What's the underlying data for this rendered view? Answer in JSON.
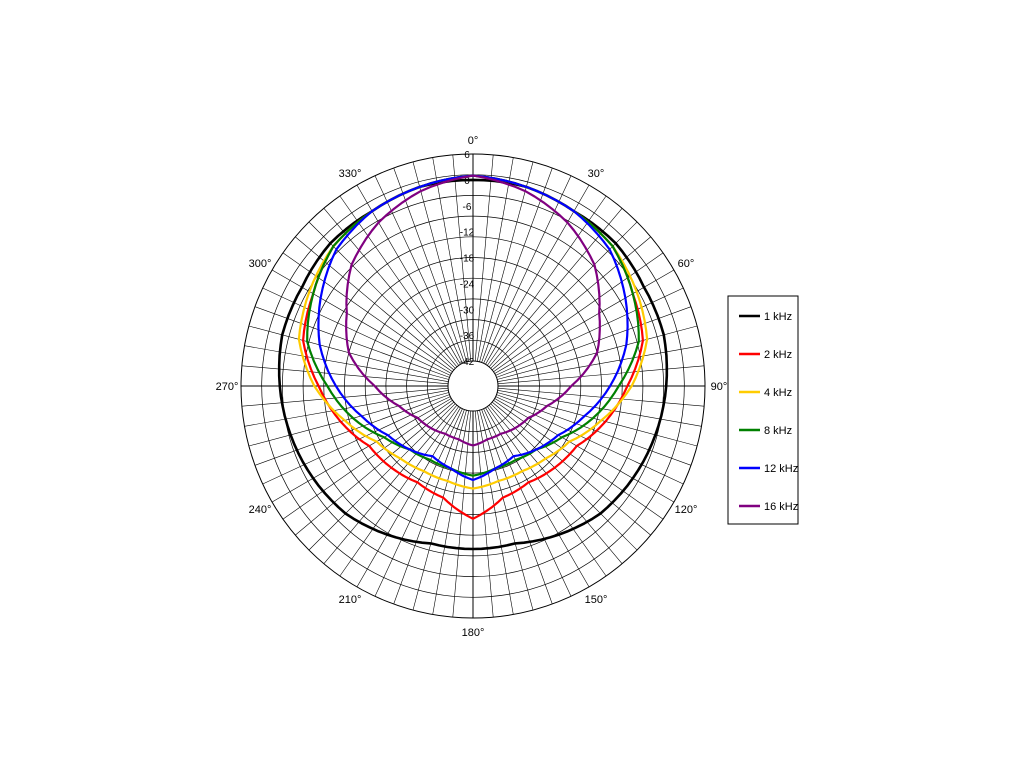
{
  "chart_data": {
    "type": "polar",
    "title": "",
    "radial_axis": {
      "min": -42,
      "max": 6,
      "ticks": [
        6,
        0,
        -6,
        -12,
        -18,
        -24,
        -30,
        -36,
        -42
      ]
    },
    "angle_ticks": [
      "0°",
      "30°",
      "60°",
      "90°",
      "120°",
      "150°",
      "180°",
      "210°",
      "240°",
      "270°",
      "300°",
      "330°"
    ],
    "grid": true,
    "legend_position": "right",
    "angles": [
      0,
      15,
      30,
      45,
      60,
      75,
      90,
      105,
      120,
      135,
      150,
      165,
      180,
      195,
      210,
      225,
      240,
      255,
      270,
      285,
      300,
      315,
      330,
      345
    ],
    "series": [
      {
        "name": "1 kHz",
        "color": "#000000",
        "values": [
          0,
          0,
          -1,
          -1,
          -2,
          -2,
          -3,
          -4,
          -5,
          -6,
          -8,
          -10,
          -10,
          -10,
          -8,
          -6,
          -5,
          -4,
          -3,
          -2,
          -2,
          -1,
          -1,
          0
        ]
      },
      {
        "name": "2 kHz",
        "color": "#ff0000",
        "values": [
          1,
          0,
          -1,
          -2,
          -5,
          -7,
          -12,
          -16,
          -20,
          -21,
          -22,
          -21,
          -17,
          -21,
          -22,
          -21,
          -20,
          -16,
          -12,
          -7,
          -5,
          -2,
          -1,
          0
        ]
      },
      {
        "name": "4 kHz",
        "color": "#ffcc00",
        "values": [
          1,
          0,
          -1,
          -2,
          -4,
          -6,
          -11,
          -17,
          -22,
          -24,
          -25,
          -25,
          -24,
          -25,
          -25,
          -24,
          -22,
          -17,
          -11,
          -6,
          -4,
          -2,
          -1,
          0
        ]
      },
      {
        "name": "8 kHz",
        "color": "#008000",
        "values": [
          1,
          0,
          -1,
          -2,
          -5,
          -8,
          -14,
          -19,
          -24,
          -27,
          -28,
          -28,
          -27,
          -28,
          -28,
          -27,
          -24,
          -19,
          -14,
          -8,
          -5,
          -2,
          -1,
          0
        ]
      },
      {
        "name": "12 kHz",
        "color": "#0000ff",
        "values": [
          1,
          0,
          -1,
          -3,
          -7,
          -11,
          -16,
          -21,
          -25,
          -27,
          -29,
          -28,
          -26,
          -28,
          -29,
          -27,
          -25,
          -21,
          -16,
          -11,
          -7,
          -3,
          -1,
          0
        ]
      },
      {
        "name": "16 kHz",
        "color": "#800080",
        "values": [
          1,
          -1,
          -4,
          -8,
          -14,
          -18,
          -25,
          -30,
          -33,
          -34,
          -35,
          -35,
          -34,
          -35,
          -35,
          -34,
          -33,
          -30,
          -25,
          -18,
          -14,
          -8,
          -4,
          -1
        ]
      }
    ]
  }
}
